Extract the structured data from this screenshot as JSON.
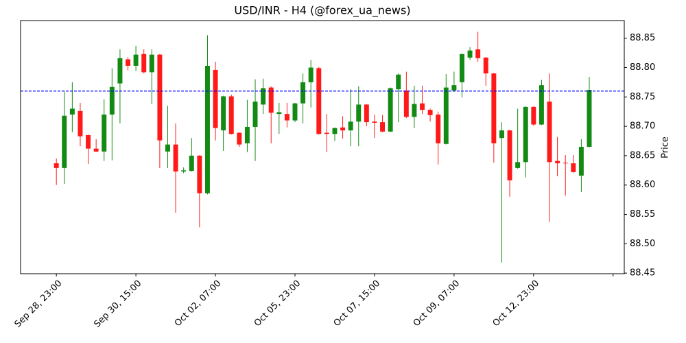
{
  "chart_data": {
    "type": "candlestick",
    "title": "USD/INR - H4 (@forex_ua_news)",
    "y_label": "Price",
    "up_color": "#138a13",
    "down_color": "#ff1919",
    "open": [
      88.637,
      88.629,
      88.72,
      88.726,
      88.685,
      88.662,
      88.657,
      88.72,
      88.773,
      88.814,
      88.803,
      88.823,
      88.792,
      88.822,
      88.657,
      88.669,
      88.623,
      88.624,
      88.65,
      88.586,
      88.796,
      88.693,
      88.751,
      88.689,
      88.671,
      88.699,
      88.737,
      88.766,
      88.721,
      88.721,
      88.71,
      88.739,
      88.775,
      88.799,
      88.689,
      88.687,
      88.698,
      88.693,
      88.708,
      88.737,
      88.708,
      88.707,
      88.691,
      88.763,
      88.761,
      88.716,
      88.739,
      88.728,
      88.72,
      88.67,
      88.761,
      88.775,
      88.817,
      88.831,
      88.817,
      88.79,
      88.68,
      88.693,
      88.629,
      88.639,
      88.733,
      88.703,
      88.742,
      88.641,
      88.638,
      88.637,
      88.616,
      88.665
    ],
    "high": [
      88.645,
      88.759,
      88.775,
      88.74,
      88.686,
      88.678,
      88.746,
      88.799,
      88.831,
      88.818,
      88.837,
      88.831,
      88.831,
      88.823,
      88.735,
      88.705,
      88.63,
      88.68,
      88.651,
      88.855,
      88.81,
      88.752,
      88.754,
      88.69,
      88.745,
      88.78,
      88.781,
      88.768,
      88.74,
      88.74,
      88.74,
      88.79,
      88.813,
      88.801,
      88.721,
      88.698,
      88.717,
      88.763,
      88.768,
      88.738,
      88.72,
      88.719,
      88.766,
      88.79,
      88.793,
      88.769,
      88.769,
      88.73,
      88.725,
      88.789,
      88.793,
      88.824,
      88.835,
      88.861,
      88.818,
      88.791,
      88.707,
      88.694,
      88.73,
      88.734,
      88.734,
      88.779,
      88.79,
      88.682,
      88.651,
      88.651,
      88.678,
      88.784
    ],
    "low": [
      88.6,
      88.602,
      88.69,
      88.666,
      88.636,
      88.656,
      88.641,
      88.642,
      88.705,
      88.795,
      88.794,
      88.79,
      88.738,
      88.629,
      88.629,
      88.553,
      88.62,
      88.623,
      88.528,
      88.584,
      88.676,
      88.658,
      88.686,
      88.665,
      88.656,
      88.641,
      88.721,
      88.671,
      88.687,
      88.698,
      88.707,
      88.705,
      88.732,
      88.686,
      88.656,
      88.675,
      88.679,
      88.666,
      88.666,
      88.7,
      88.68,
      88.69,
      88.69,
      88.707,
      88.714,
      88.697,
      88.721,
      88.708,
      88.635,
      88.669,
      88.759,
      88.749,
      88.813,
      88.81,
      88.769,
      88.638,
      88.468,
      88.58,
      88.628,
      88.613,
      88.701,
      88.702,
      88.537,
      88.615,
      88.582,
      88.621,
      88.588,
      88.664
    ],
    "close": [
      88.629,
      88.718,
      88.73,
      88.683,
      88.662,
      88.657,
      88.72,
      88.767,
      88.816,
      88.803,
      88.822,
      88.792,
      88.822,
      88.676,
      88.669,
      88.623,
      88.625,
      88.65,
      88.586,
      88.803,
      88.697,
      88.751,
      88.687,
      88.669,
      88.699,
      88.742,
      88.765,
      88.723,
      88.724,
      88.71,
      88.739,
      88.775,
      88.8,
      88.687,
      88.687,
      88.697,
      88.693,
      88.708,
      88.737,
      88.707,
      88.706,
      88.691,
      88.765,
      88.788,
      88.716,
      88.738,
      88.728,
      88.719,
      88.671,
      88.766,
      88.77,
      88.823,
      88.829,
      88.816,
      88.79,
      88.671,
      88.693,
      88.608,
      88.639,
      88.733,
      88.703,
      88.77,
      88.639,
      88.637,
      88.637,
      88.622,
      88.665,
      88.762
    ],
    "xlim": [
      -4.5,
      71.4
    ],
    "xticks": [
      {
        "value": 0,
        "label": "Sep 28, 23:00"
      },
      {
        "value": 10,
        "label": "Sep 30, 15:00"
      },
      {
        "value": 20,
        "label": "Oct 02, 07:00"
      },
      {
        "value": 30,
        "label": "Oct 05, 23:00"
      },
      {
        "value": 40,
        "label": "Oct 07, 15:00"
      },
      {
        "value": 50,
        "label": "Oct 09, 07:00"
      },
      {
        "value": 60,
        "label": "Oct 12, 23:00"
      },
      {
        "value": 70,
        "label": null
      }
    ],
    "ylim": [
      88.449,
      88.88
    ],
    "yticks": [
      88.45,
      {
        "value": 88.5,
        "label": "88.50"
      },
      88.55,
      {
        "value": 88.6,
        "label": "88.60"
      },
      88.65,
      {
        "value": 88.7,
        "label": "88.70"
      },
      88.75,
      {
        "value": 88.8,
        "label": "88.80"
      },
      88.85
    ],
    "hline": {
      "value": 88.76,
      "color": "#0000ff",
      "style": "dashed"
    }
  }
}
